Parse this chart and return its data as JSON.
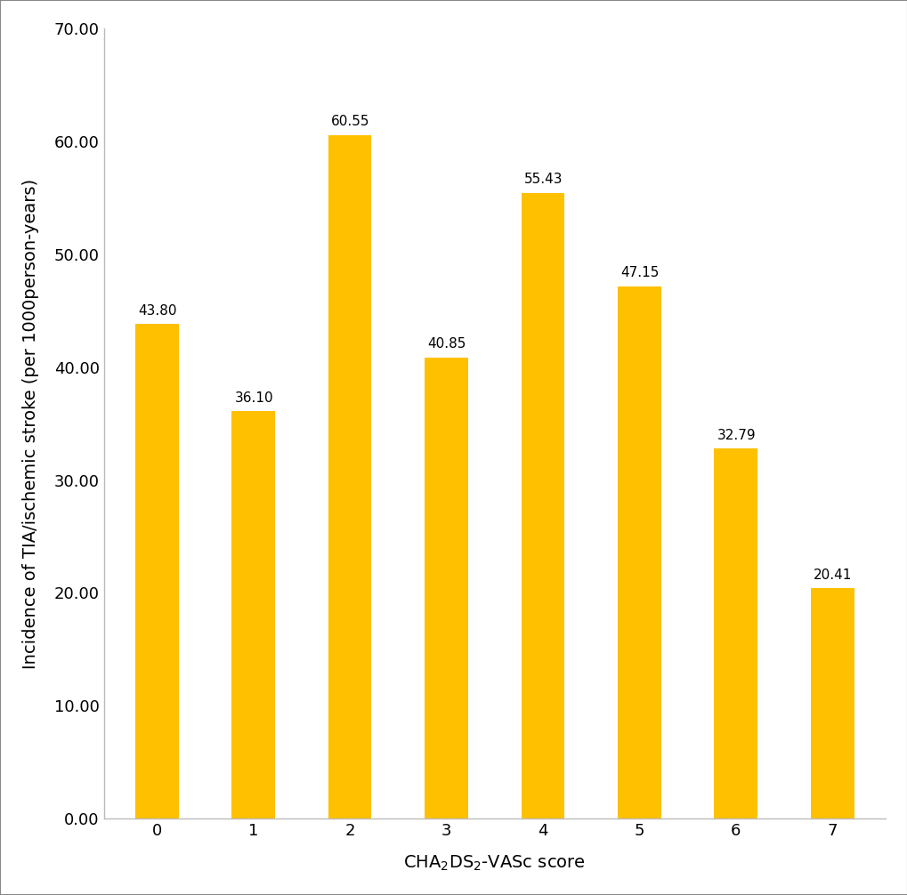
{
  "categories": [
    "0",
    "1",
    "2",
    "3",
    "4",
    "5",
    "6",
    "7"
  ],
  "values": [
    43.8,
    36.1,
    60.55,
    40.85,
    55.43,
    47.15,
    32.79,
    20.41
  ],
  "bar_color": "#FFC000",
  "ylabel": "Incidence of TIA/ischemic stroke (per 1000person-years)",
  "xlabel": "CHA₂DS₂-VASc score",
  "ylim": [
    0,
    70
  ],
  "yticks": [
    0.0,
    10.0,
    20.0,
    30.0,
    40.0,
    50.0,
    60.0,
    70.0
  ],
  "bar_width": 0.45,
  "label_fontsize": 14,
  "tick_fontsize": 13,
  "value_fontsize": 11,
  "background_color": "#ffffff",
  "edge_color": "none",
  "border_color": "#aaaaaa"
}
